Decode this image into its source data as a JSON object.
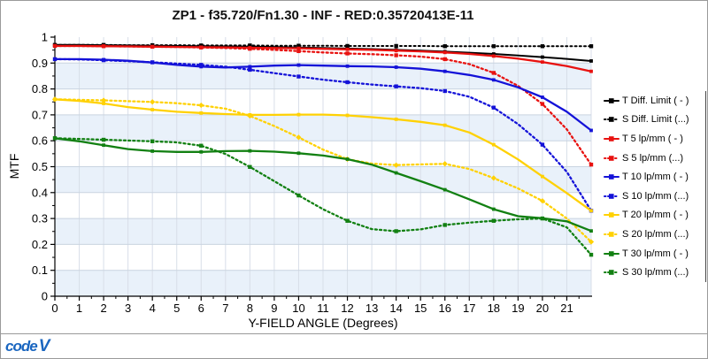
{
  "title": "ZP1 - f35.720/Fn1.30 - INF - RED:0.35720413E-11",
  "logo": {
    "text_code": "code",
    "text_v": "V",
    "color": "#1a66c0"
  },
  "chart_data": {
    "type": "line",
    "title": "ZP1 - f35.720/Fn1.30 - INF - RED:0.35720413E-11",
    "xlabel": "Y-FIELD ANGLE (Degrees)",
    "ylabel": "MTF",
    "xlim": [
      0,
      22
    ],
    "ylim": [
      0,
      1
    ],
    "grid": true,
    "legend_position": "right",
    "band_colors": [
      "#ffffff",
      "#e9f1fa"
    ],
    "gridline_color_v": "#d8dee8",
    "gridline_color_h": "#c9d4e0",
    "x_tick_labels": [
      "0",
      "1",
      "2",
      "3",
      "4",
      "5",
      "6",
      "7",
      "8",
      "9",
      "10",
      "11",
      "12",
      "13",
      "14",
      "15",
      "16",
      "17",
      "18",
      "19",
      "20",
      "21"
    ],
    "y_tick_labels": [
      "0",
      "0.1",
      "0.2",
      "0.3",
      "0.4",
      "0.5",
      "0.6",
      "0.7",
      "0.8",
      "0.9",
      "1"
    ],
    "x": [
      0,
      1,
      2,
      3,
      4,
      5,
      6,
      7,
      8,
      9,
      10,
      11,
      12,
      13,
      14,
      15,
      16,
      17,
      18,
      19,
      20,
      21,
      22
    ],
    "series": [
      {
        "name": "T Diff. Limit ( - )",
        "color": "#000000",
        "style": "solid",
        "values": [
          0.97,
          0.97,
          0.969,
          0.968,
          0.967,
          0.966,
          0.965,
          0.964,
          0.963,
          0.962,
          0.96,
          0.958,
          0.956,
          0.954,
          0.951,
          0.948,
          0.944,
          0.94,
          0.935,
          0.929,
          0.923,
          0.916,
          0.908
        ]
      },
      {
        "name": "S Diff. Limit (...)",
        "color": "#000000",
        "style": "dotted",
        "values": [
          0.97,
          0.97,
          0.97,
          0.969,
          0.969,
          0.969,
          0.968,
          0.968,
          0.968,
          0.967,
          0.967,
          0.967,
          0.966,
          0.966,
          0.966,
          0.966,
          0.965,
          0.965,
          0.965,
          0.965,
          0.965,
          0.965,
          0.965
        ]
      },
      {
        "name": "T 5 lp/mm ( - )",
        "color": "#e81210",
        "style": "solid",
        "values": [
          0.966,
          0.966,
          0.965,
          0.964,
          0.963,
          0.962,
          0.961,
          0.96,
          0.959,
          0.958,
          0.957,
          0.955,
          0.953,
          0.951,
          0.948,
          0.945,
          0.941,
          0.935,
          0.927,
          0.917,
          0.904,
          0.888,
          0.868
        ]
      },
      {
        "name": "S 5 lp/mm (...)",
        "color": "#e81210",
        "style": "dotted",
        "values": [
          0.966,
          0.966,
          0.965,
          0.964,
          0.963,
          0.962,
          0.96,
          0.958,
          0.955,
          0.951,
          0.946,
          0.941,
          0.937,
          0.934,
          0.93,
          0.925,
          0.915,
          0.896,
          0.862,
          0.812,
          0.742,
          0.644,
          0.508
        ]
      },
      {
        "name": "T 10 lp/mm ( - )",
        "color": "#1412d8",
        "style": "solid",
        "values": [
          0.915,
          0.915,
          0.913,
          0.909,
          0.902,
          0.893,
          0.886,
          0.883,
          0.886,
          0.89,
          0.892,
          0.89,
          0.888,
          0.887,
          0.884,
          0.878,
          0.868,
          0.854,
          0.835,
          0.806,
          0.768,
          0.712,
          0.64
        ]
      },
      {
        "name": "S 10 lp/mm (...)",
        "color": "#1412d8",
        "style": "dotted",
        "values": [
          0.915,
          0.914,
          0.911,
          0.907,
          0.903,
          0.898,
          0.893,
          0.886,
          0.874,
          0.861,
          0.848,
          0.836,
          0.826,
          0.817,
          0.81,
          0.803,
          0.792,
          0.77,
          0.728,
          0.664,
          0.585,
          0.48,
          0.33
        ]
      },
      {
        "name": "T 20 lp/mm ( - )",
        "color": "#ffd103",
        "style": "solid",
        "values": [
          0.76,
          0.754,
          0.744,
          0.73,
          0.72,
          0.712,
          0.707,
          0.703,
          0.7,
          0.7,
          0.701,
          0.701,
          0.698,
          0.691,
          0.683,
          0.673,
          0.66,
          0.632,
          0.585,
          0.528,
          0.462,
          0.398,
          0.33
        ]
      },
      {
        "name": "S 20 lp/mm (...)",
        "color": "#ffd103",
        "style": "dotted",
        "values": [
          0.76,
          0.758,
          0.756,
          0.753,
          0.75,
          0.745,
          0.737,
          0.724,
          0.696,
          0.657,
          0.613,
          0.566,
          0.529,
          0.512,
          0.506,
          0.509,
          0.511,
          0.491,
          0.456,
          0.416,
          0.368,
          0.3,
          0.21
        ]
      },
      {
        "name": "T 30 lp/mm ( - )",
        "color": "#128012",
        "style": "solid",
        "values": [
          0.61,
          0.598,
          0.583,
          0.568,
          0.56,
          0.557,
          0.557,
          0.56,
          0.561,
          0.558,
          0.552,
          0.543,
          0.529,
          0.508,
          0.476,
          0.444,
          0.411,
          0.374,
          0.336,
          0.309,
          0.301,
          0.289,
          0.252
        ]
      },
      {
        "name": "S 30 lp/mm (...)",
        "color": "#128012",
        "style": "dotted",
        "values": [
          0.61,
          0.607,
          0.604,
          0.601,
          0.598,
          0.594,
          0.581,
          0.549,
          0.499,
          0.444,
          0.389,
          0.336,
          0.291,
          0.259,
          0.251,
          0.258,
          0.275,
          0.284,
          0.291,
          0.297,
          0.3,
          0.266,
          0.16
        ]
      }
    ]
  }
}
